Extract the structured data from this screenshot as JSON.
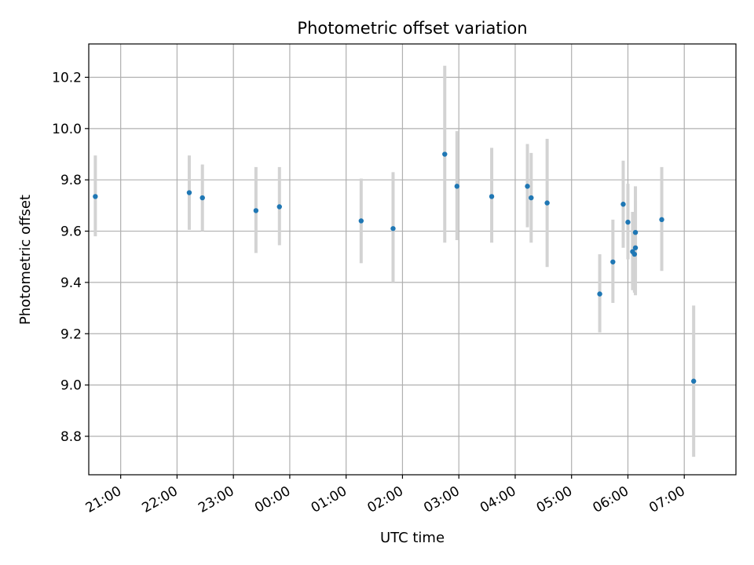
{
  "chart_data": {
    "type": "scatter",
    "title": "Photometric offset variation",
    "xlabel": "UTC time",
    "ylabel": "Photometric offset",
    "x_unit": "UTC clock time (24h, crossing midnight)",
    "xlim": [
      "20:26",
      "07:55"
    ],
    "ylim": [
      8.65,
      10.33
    ],
    "grid": true,
    "x_ticks": [
      "21:00",
      "22:00",
      "23:00",
      "00:00",
      "01:00",
      "02:00",
      "03:00",
      "04:00",
      "05:00",
      "06:00",
      "07:00"
    ],
    "y_ticks": [
      "8.8",
      "9.0",
      "9.2",
      "9.4",
      "9.6",
      "9.8",
      "10.0",
      "10.2"
    ],
    "marker_color": "#1f77b4",
    "errorbar_color": "#d3d3d3",
    "points": [
      {
        "x": "20:33",
        "y": 9.735,
        "lo": 9.58,
        "hi": 9.895
      },
      {
        "x": "22:13",
        "y": 9.75,
        "lo": 9.605,
        "hi": 9.895
      },
      {
        "x": "22:27",
        "y": 9.73,
        "lo": 9.6,
        "hi": 9.86
      },
      {
        "x": "23:24",
        "y": 9.68,
        "lo": 9.515,
        "hi": 9.85
      },
      {
        "x": "23:49",
        "y": 9.695,
        "lo": 9.545,
        "hi": 9.85
      },
      {
        "x": "01:16",
        "y": 9.64,
        "lo": 9.475,
        "hi": 9.805
      },
      {
        "x": "01:50",
        "y": 9.61,
        "lo": 9.4,
        "hi": 9.83
      },
      {
        "x": "02:45",
        "y": 9.9,
        "lo": 9.555,
        "hi": 10.245
      },
      {
        "x": "02:58",
        "y": 9.775,
        "lo": 9.565,
        "hi": 9.99
      },
      {
        "x": "03:35",
        "y": 9.735,
        "lo": 9.555,
        "hi": 9.925
      },
      {
        "x": "04:13",
        "y": 9.775,
        "lo": 9.615,
        "hi": 9.94
      },
      {
        "x": "04:17",
        "y": 9.73,
        "lo": 9.555,
        "hi": 9.905
      },
      {
        "x": "04:34",
        "y": 9.71,
        "lo": 9.46,
        "hi": 9.96
      },
      {
        "x": "05:30",
        "y": 9.355,
        "lo": 9.205,
        "hi": 9.51
      },
      {
        "x": "05:44",
        "y": 9.48,
        "lo": 9.32,
        "hi": 9.645
      },
      {
        "x": "05:55",
        "y": 9.705,
        "lo": 9.535,
        "hi": 9.875
      },
      {
        "x": "06:00",
        "y": 9.635,
        "lo": 9.49,
        "hi": 9.785
      },
      {
        "x": "06:05",
        "y": 9.52,
        "lo": 9.37,
        "hi": 9.675
      },
      {
        "x": "06:07",
        "y": 9.51,
        "lo": 9.36,
        "hi": 9.665
      },
      {
        "x": "06:08",
        "y": 9.535,
        "lo": 9.35,
        "hi": 9.72
      },
      {
        "x": "06:08",
        "y": 9.595,
        "lo": 9.41,
        "hi": 9.775
      },
      {
        "x": "06:36",
        "y": 9.645,
        "lo": 9.445,
        "hi": 9.85
      },
      {
        "x": "07:10",
        "y": 9.015,
        "lo": 8.72,
        "hi": 9.31
      }
    ]
  }
}
